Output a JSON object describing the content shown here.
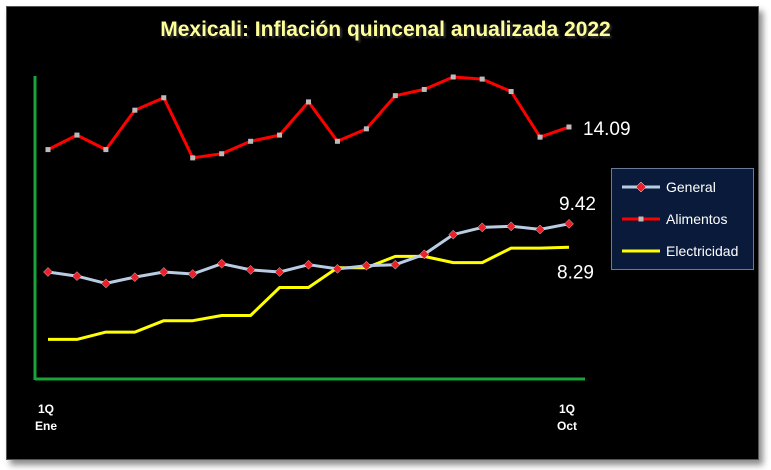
{
  "chart_data": {
    "type": "line",
    "title": "Mexicali: Inflación quincenal anualizada 2022",
    "x_tick_labels": [
      {
        "index": 0,
        "line1": "1Q",
        "line2": "Ene"
      },
      {
        "index": 18,
        "line1": "1Q",
        "line2": "Oct"
      }
    ],
    "ylim": [
      3,
      16.5
    ],
    "grid": false,
    "legend_position": "right",
    "series": [
      {
        "name": "General",
        "color": "#b8cce4",
        "marker_color": "#e8212a",
        "marker": "diamond",
        "end_label": "9.42",
        "values": [
          7.1,
          6.9,
          6.55,
          6.85,
          7.1,
          7.0,
          7.5,
          7.2,
          7.1,
          7.45,
          7.25,
          7.4,
          7.45,
          7.95,
          8.9,
          9.25,
          9.3,
          9.15,
          9.42
        ]
      },
      {
        "name": "Alimentos",
        "color": "#ff0000",
        "marker_color": "#bbbbbb",
        "marker": "square",
        "end_label": "14.09",
        "values": [
          13.0,
          13.7,
          13.0,
          14.9,
          15.5,
          12.6,
          12.8,
          13.4,
          13.7,
          15.3,
          13.4,
          14.0,
          15.6,
          15.9,
          16.5,
          16.4,
          15.8,
          13.6,
          14.09
        ]
      },
      {
        "name": "Electricidad",
        "color": "#ffff00",
        "marker": "none",
        "end_label": "8.29",
        "values": [
          3.85,
          3.85,
          4.2,
          4.2,
          4.75,
          4.75,
          5.0,
          5.0,
          6.35,
          6.35,
          7.3,
          7.3,
          7.85,
          7.85,
          7.55,
          7.55,
          8.25,
          8.25,
          8.29
        ]
      }
    ]
  },
  "axis_colors": {
    "axes": "#19a33a",
    "title": "#ffff99",
    "background": "#000000"
  }
}
